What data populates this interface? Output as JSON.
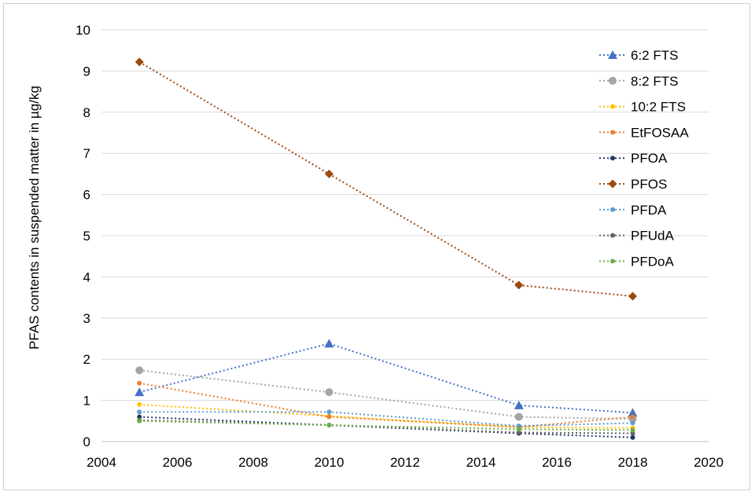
{
  "chart_data": {
    "type": "line",
    "title": "",
    "xlabel": "",
    "ylabel": "PFAS contents in suspended matter in µg/kg",
    "xlim": [
      2004,
      2020
    ],
    "ylim": [
      0,
      10
    ],
    "xticks": [
      "2004",
      "2006",
      "2008",
      "2010",
      "2012",
      "2014",
      "2016",
      "2018",
      "2020"
    ],
    "yticks": [
      "0",
      "1",
      "2",
      "3",
      "4",
      "5",
      "6",
      "7",
      "8",
      "9",
      "10"
    ],
    "grid": "horizontal",
    "legend_position": "top-right",
    "x": [
      2005,
      2010,
      2015,
      2018
    ],
    "series": [
      {
        "name": "6:2 FTS",
        "values": [
          1.2,
          2.38,
          0.88,
          0.7
        ],
        "color": "#4472c4",
        "marker": "triangle"
      },
      {
        "name": "8:2 FTS",
        "values": [
          1.73,
          1.2,
          0.6,
          0.55
        ],
        "color": "#a5a5a5",
        "marker": "circle-large"
      },
      {
        "name": "10:2 FTS",
        "values": [
          0.9,
          0.62,
          0.35,
          0.33
        ],
        "color": "#ffc000",
        "marker": "circle"
      },
      {
        "name": "EtFOSAA",
        "values": [
          1.42,
          0.6,
          0.35,
          0.6
        ],
        "color": "#ed7d31",
        "marker": "circle"
      },
      {
        "name": "PFOA",
        "values": [
          0.6,
          0.4,
          0.2,
          0.1
        ],
        "color": "#1f3864",
        "marker": "circle"
      },
      {
        "name": "PFOS",
        "values": [
          9.22,
          6.5,
          3.8,
          3.53
        ],
        "color": "#9e480e",
        "marker": "diamond"
      },
      {
        "name": "PFDA",
        "values": [
          0.72,
          0.72,
          0.38,
          0.45
        ],
        "color": "#5b9bd5",
        "marker": "circle"
      },
      {
        "name": "PFUdA",
        "values": [
          0.52,
          0.4,
          0.22,
          0.2
        ],
        "color": "#636363",
        "marker": "circle"
      },
      {
        "name": "PFDoA",
        "values": [
          0.5,
          0.4,
          0.3,
          0.28
        ],
        "color": "#70ad47",
        "marker": "circle"
      }
    ]
  }
}
